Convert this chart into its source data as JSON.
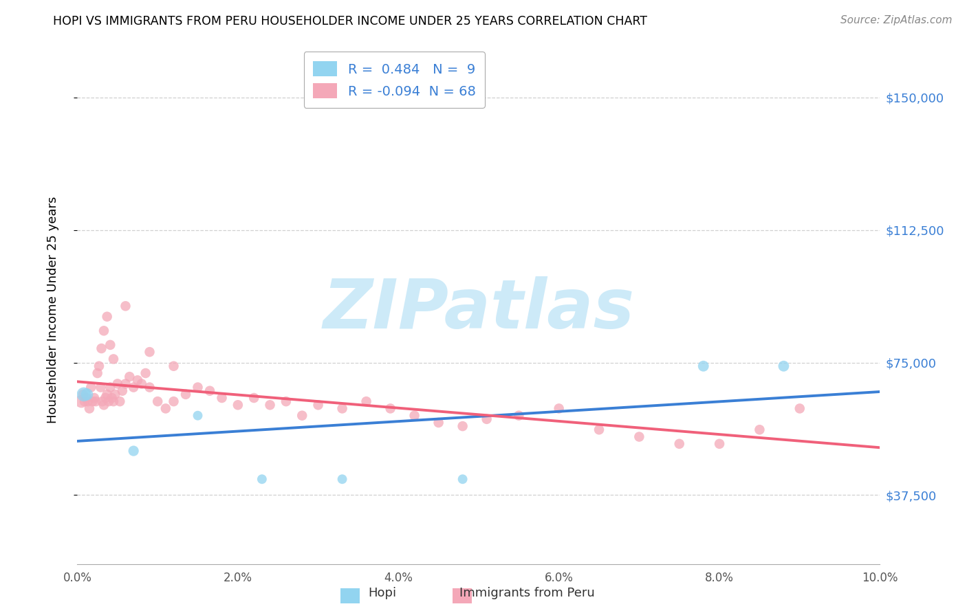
{
  "title": "HOPI VS IMMIGRANTS FROM PERU HOUSEHOLDER INCOME UNDER 25 YEARS CORRELATION CHART",
  "source": "Source: ZipAtlas.com",
  "ylabel": "Householder Income Under 25 years",
  "xlim": [
    0.0,
    10.0
  ],
  "ylim": [
    18000,
    162000
  ],
  "yticks": [
    37500,
    75000,
    112500,
    150000
  ],
  "ytick_labels": [
    "$37,500",
    "$75,000",
    "$112,500",
    "$150,000"
  ],
  "xticks": [
    0.0,
    2.0,
    4.0,
    6.0,
    8.0,
    10.0
  ],
  "xtick_labels": [
    "0.0%",
    "2.0%",
    "4.0%",
    "6.0%",
    "8.0%",
    "10.0%"
  ],
  "hopi_R": 0.484,
  "hopi_N": 9,
  "peru_R": -0.094,
  "peru_N": 68,
  "hopi_color": "#92D4F0",
  "peru_color": "#F4A8B8",
  "hopi_line_color": "#3A7FD5",
  "peru_line_color": "#F0607A",
  "background_color": "#ffffff",
  "grid_color": "#d0d0d0",
  "watermark_color": "#c8e8f8",
  "hopi_x": [
    0.08,
    0.7,
    1.5,
    3.3,
    4.8,
    7.8,
    8.8,
    2.3,
    0.12
  ],
  "hopi_y": [
    66000,
    50000,
    60000,
    42000,
    42000,
    74000,
    74000,
    42000,
    66000
  ],
  "hopi_size": [
    220,
    120,
    100,
    100,
    100,
    130,
    130,
    100,
    160
  ],
  "peru_x": [
    0.05,
    0.07,
    0.09,
    0.11,
    0.13,
    0.15,
    0.17,
    0.19,
    0.21,
    0.23,
    0.25,
    0.27,
    0.29,
    0.31,
    0.33,
    0.35,
    0.37,
    0.39,
    0.41,
    0.43,
    0.45,
    0.47,
    0.5,
    0.53,
    0.56,
    0.6,
    0.65,
    0.7,
    0.75,
    0.8,
    0.85,
    0.9,
    1.0,
    1.1,
    1.2,
    1.35,
    1.5,
    1.65,
    1.8,
    2.0,
    2.2,
    2.4,
    2.6,
    2.8,
    3.0,
    3.3,
    3.6,
    3.9,
    4.2,
    4.5,
    4.8,
    5.1,
    5.5,
    6.0,
    6.5,
    7.0,
    7.5,
    8.0,
    8.5,
    9.0,
    0.33,
    0.37,
    0.41,
    0.45,
    0.3,
    0.6,
    0.9,
    1.2
  ],
  "peru_y": [
    64000,
    66000,
    64000,
    65000,
    64000,
    62000,
    68000,
    64000,
    65000,
    64000,
    72000,
    74000,
    68000,
    64000,
    63000,
    65000,
    66000,
    64000,
    68000,
    65000,
    64000,
    66000,
    69000,
    64000,
    67000,
    69000,
    71000,
    68000,
    70000,
    69000,
    72000,
    68000,
    64000,
    62000,
    64000,
    66000,
    68000,
    67000,
    65000,
    63000,
    65000,
    63000,
    64000,
    60000,
    63000,
    62000,
    64000,
    62000,
    60000,
    58000,
    57000,
    59000,
    60000,
    62000,
    56000,
    54000,
    52000,
    52000,
    56000,
    62000,
    84000,
    88000,
    80000,
    76000,
    79000,
    91000,
    78000,
    74000
  ],
  "peru_size": [
    180,
    110,
    110,
    110,
    110,
    110,
    110,
    110,
    110,
    110,
    110,
    110,
    110,
    110,
    110,
    110,
    110,
    110,
    110,
    110,
    110,
    110,
    110,
    110,
    110,
    110,
    110,
    110,
    110,
    110,
    110,
    110,
    110,
    110,
    110,
    110,
    110,
    110,
    110,
    110,
    110,
    110,
    110,
    110,
    110,
    110,
    110,
    110,
    110,
    110,
    110,
    110,
    110,
    110,
    110,
    110,
    110,
    110,
    110,
    110,
    110,
    110,
    110,
    110,
    110,
    110,
    110,
    110
  ]
}
